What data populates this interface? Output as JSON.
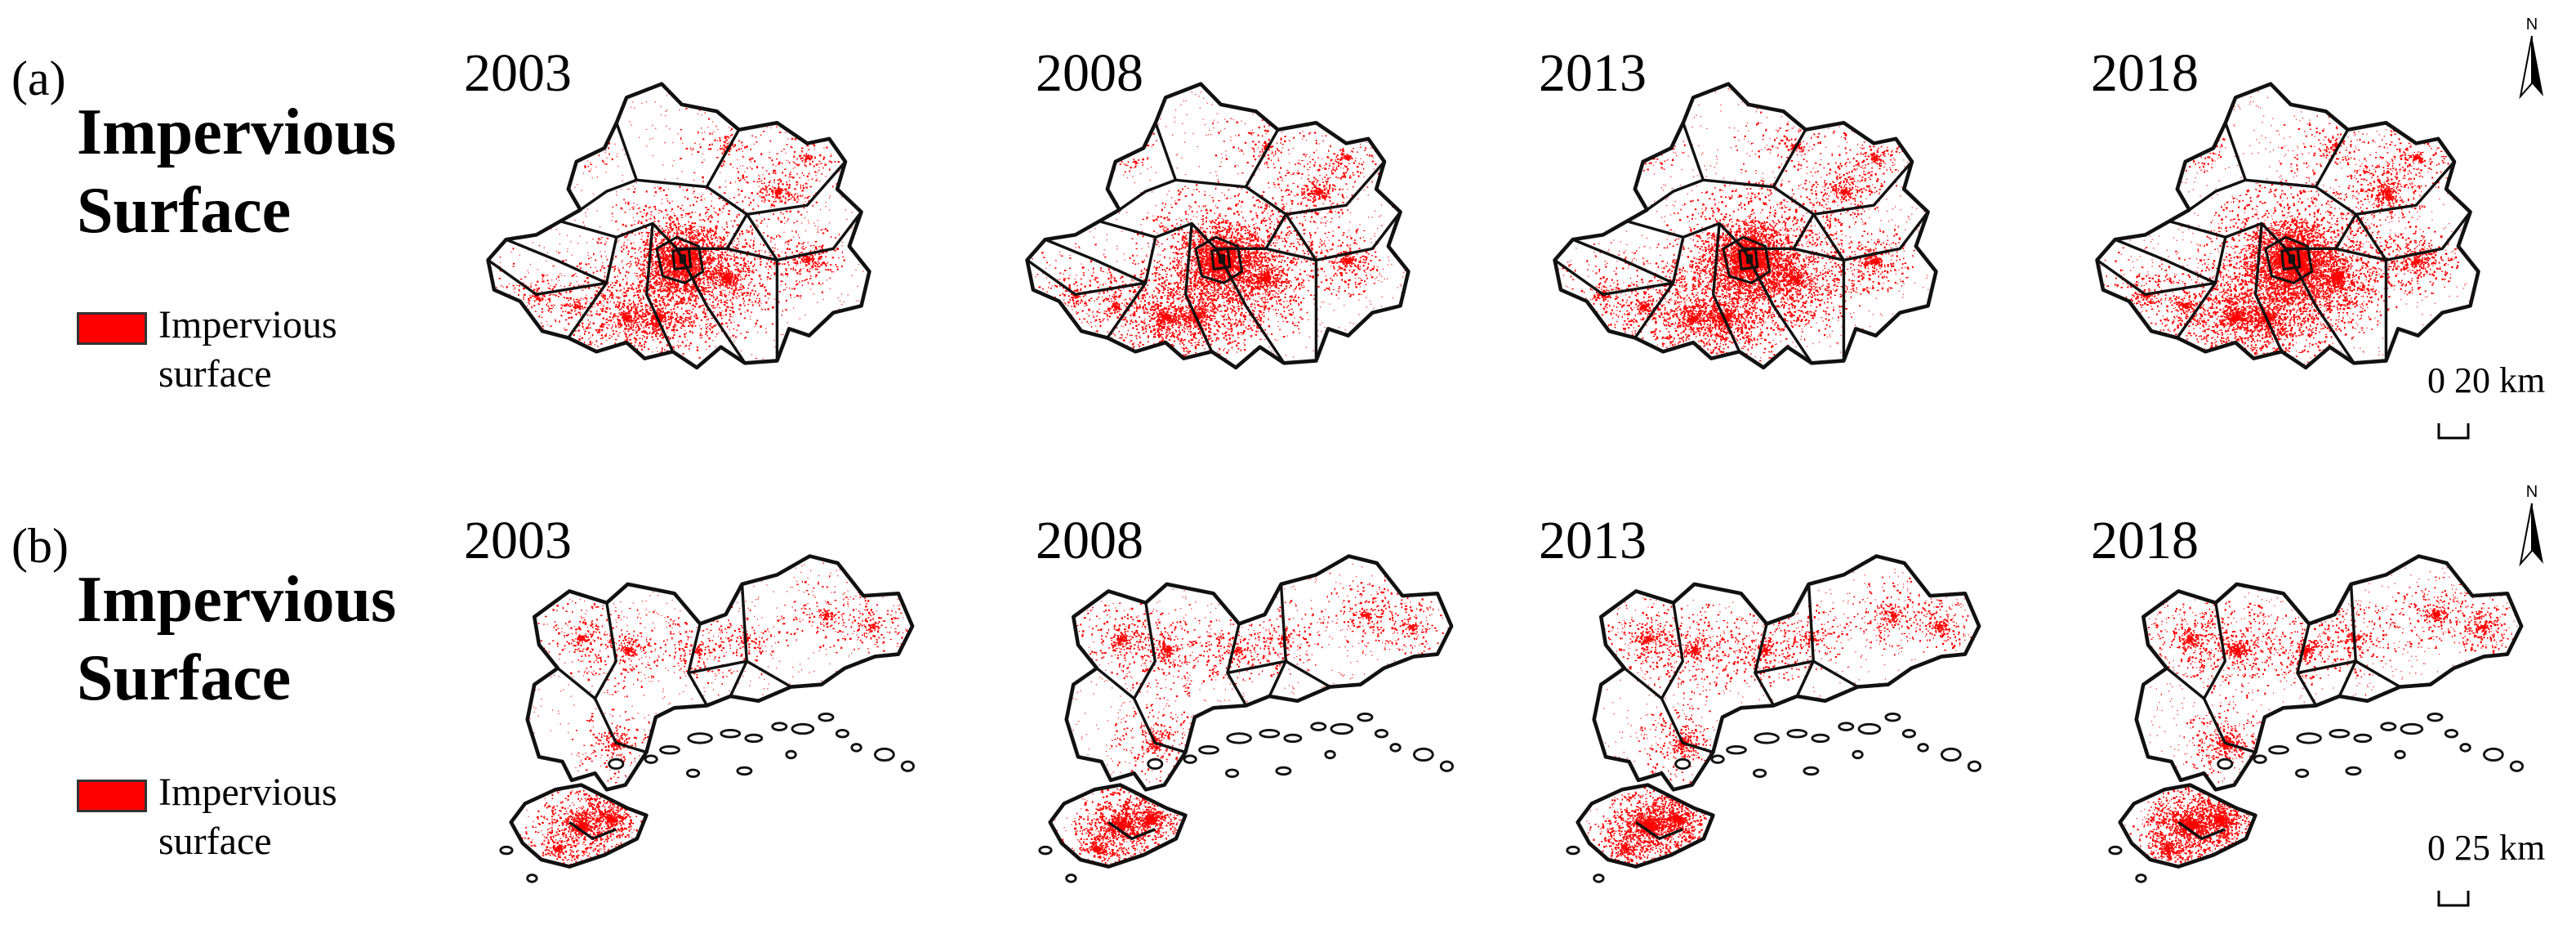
{
  "rows": [
    {
      "tag": "(a)",
      "legend_title": [
        "Impervious",
        "Surface"
      ],
      "legend_item_label": [
        "Impervious",
        "surface"
      ],
      "legend_color": "#ff0000",
      "years": [
        "2003",
        "2008",
        "2013",
        "2018"
      ],
      "scale_label": "0 20  km",
      "north_label": "N"
    },
    {
      "tag": "(b)",
      "legend_title": [
        "Impervious",
        "Surface"
      ],
      "legend_item_label": [
        "Impervious",
        "surface"
      ],
      "legend_color": "#ff0000",
      "years": [
        "2003",
        "2008",
        "2013",
        "2018"
      ],
      "scale_label": "0 25  km",
      "north_label": "N"
    }
  ]
}
